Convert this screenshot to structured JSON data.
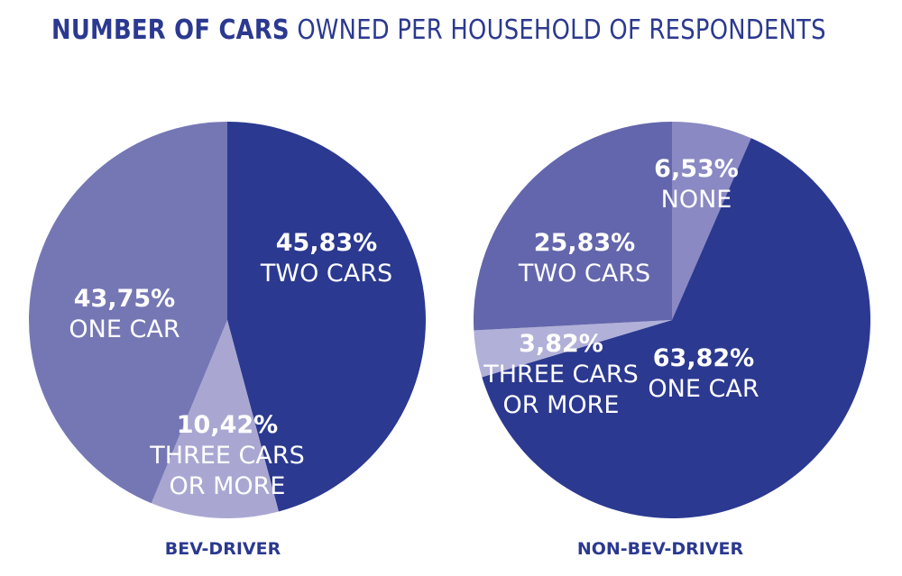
{
  "title": {
    "bold": "NUMBER OF CARS",
    "rest": "OWNED PER HOUSEHOLD OF RESPONDENTS",
    "color": "#2b3990"
  },
  "chart_data": [
    {
      "type": "pie",
      "caption": "BEV-DRIVER",
      "slices": [
        {
          "value_label": "45,83%",
          "value": 45.83,
          "label_lines": [
            "TWO CARS"
          ],
          "color": "#2b3990"
        },
        {
          "value_label": "10,42%",
          "value": 10.42,
          "label_lines": [
            "THREE CARS",
            "OR MORE"
          ],
          "color": "#a9a7d2"
        },
        {
          "value_label": "43,75%",
          "value": 43.75,
          "label_lines": [
            "ONE CAR"
          ],
          "color": "#7577b5"
        }
      ]
    },
    {
      "type": "pie",
      "caption": "NON-BEV-DRIVER",
      "slices": [
        {
          "value_label": "6,53%",
          "value": 6.53,
          "label_lines": [
            "NONE"
          ],
          "color": "#8a89c3"
        },
        {
          "value_label": "63,82%",
          "value": 63.82,
          "label_lines": [
            "ONE CAR"
          ],
          "color": "#2b3990"
        },
        {
          "value_label": "3,82%",
          "value": 3.82,
          "label_lines": [
            "THREE CARS",
            "OR MORE"
          ],
          "color": "#b1b0d8"
        },
        {
          "value_label": "25,83%",
          "value": 25.83,
          "label_lines": [
            "TWO CARS"
          ],
          "color": "#6366ac"
        }
      ]
    }
  ]
}
